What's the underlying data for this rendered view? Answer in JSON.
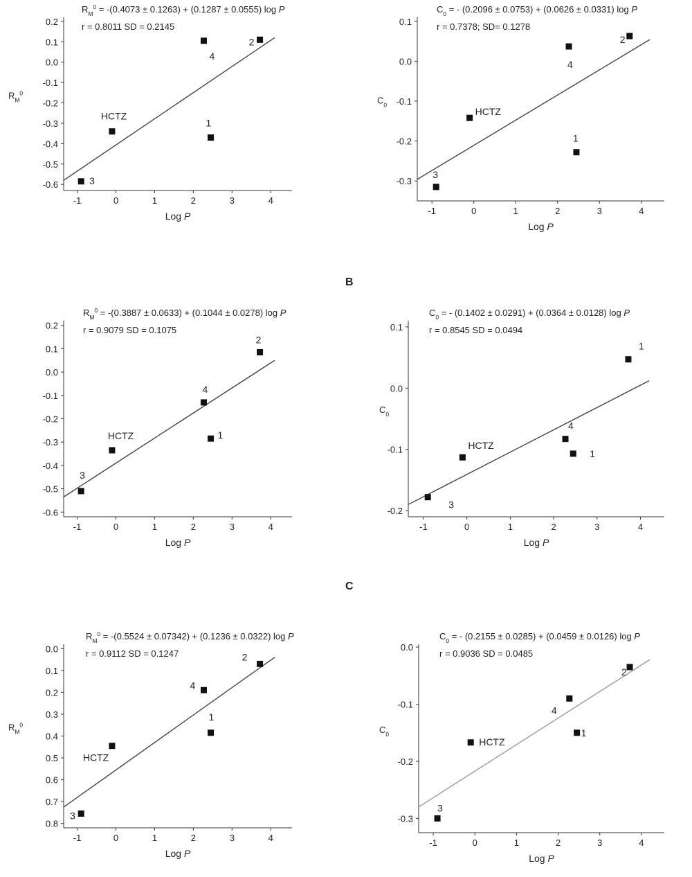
{
  "section_labels": {
    "b": "B",
    "c": "C"
  },
  "chart_data": [
    {
      "type": "scatter",
      "equation": "R_M^0 = -(0.4073 ± 0.1263) + (0.1287 ± 0.0555) log P",
      "stats": [
        "r = 0.8011",
        "SD = 0.2145"
      ],
      "xlabel": "Log P",
      "ylabel": "R_M^0",
      "xlim": [
        -1.35,
        4.55
      ],
      "ylim": [
        -0.63,
        0.22
      ],
      "yticks": [
        0.2,
        0.1,
        0.0,
        -0.1,
        -0.2,
        -0.3,
        -0.4,
        -0.5,
        -0.6
      ],
      "xticks": [
        -1,
        0,
        1,
        2,
        3,
        4
      ],
      "points": [
        {
          "label": "HCTZ",
          "x": -0.1,
          "y": -0.34
        },
        {
          "label": "1",
          "x": 2.45,
          "y": -0.37
        },
        {
          "label": "2",
          "x": 3.72,
          "y": 0.11
        },
        {
          "label": "3",
          "x": -0.9,
          "y": -0.585
        },
        {
          "label": "4",
          "x": 2.27,
          "y": 0.105
        }
      ],
      "fit": {
        "x": [
          -1.35,
          4.1
        ],
        "y": [
          -0.58,
          0.12
        ]
      },
      "fit_color": "#444444",
      "grid": false
    },
    {
      "type": "scatter",
      "equation": "C_0 = - (0.2096 ± 0.0753) + (0.0626 ± 0.0331) log P",
      "stats": [
        "r = 0.7378; SD= 0.1278"
      ],
      "xlabel": "Log P",
      "ylabel": "C_0",
      "xlim": [
        -1.35,
        4.55
      ],
      "ylim": [
        -0.35,
        0.11
      ],
      "yticks": [
        0.1,
        0.0,
        -0.1,
        -0.2,
        -0.3
      ],
      "xticks": [
        -1,
        0,
        1,
        2,
        3,
        4
      ],
      "points": [
        {
          "label": "HCTZ",
          "x": -0.1,
          "y": -0.142
        },
        {
          "label": "1",
          "x": 2.45,
          "y": -0.228
        },
        {
          "label": "2",
          "x": 3.72,
          "y": 0.063
        },
        {
          "label": "3",
          "x": -0.9,
          "y": -0.315
        },
        {
          "label": "4",
          "x": 2.27,
          "y": 0.037
        }
      ],
      "fit": {
        "x": [
          -1.35,
          4.2
        ],
        "y": [
          -0.296,
          0.054
        ]
      },
      "fit_color": "#444444",
      "grid": false
    },
    {
      "type": "scatter",
      "equation": "R_M^0 = -(0.3887 ± 0.0633) + (0.1044 ± 0.0278) log P",
      "stats": [
        "r = 0.9079",
        "SD = 0.1075"
      ],
      "xlabel": "Log P",
      "ylabel": "",
      "xlim": [
        -1.35,
        4.55
      ],
      "ylim": [
        -0.62,
        0.22
      ],
      "yticks": [
        0.2,
        0.1,
        0.0,
        -0.1,
        -0.2,
        -0.3,
        -0.4,
        -0.5,
        -0.6
      ],
      "xticks": [
        -1,
        0,
        1,
        2,
        3,
        4
      ],
      "points": [
        {
          "label": "HCTZ",
          "x": -0.1,
          "y": -0.335
        },
        {
          "label": "1",
          "x": 2.45,
          "y": -0.285
        },
        {
          "label": "2",
          "x": 3.72,
          "y": 0.085
        },
        {
          "label": "3",
          "x": -0.9,
          "y": -0.51
        },
        {
          "label": "4",
          "x": 2.27,
          "y": -0.13
        }
      ],
      "fit": {
        "x": [
          -1.35,
          4.1
        ],
        "y": [
          -0.535,
          0.05
        ]
      },
      "fit_color": "#444444",
      "grid": false
    },
    {
      "type": "scatter",
      "equation": "C_0 = - (0.1402 ± 0.0291) + (0.0364 ± 0.0128) log P",
      "stats": [
        "r = 0.8545",
        "SD = 0.0494"
      ],
      "xlabel": "Log P",
      "ylabel": "C_0",
      "xlim": [
        -1.35,
        4.55
      ],
      "ylim": [
        -0.21,
        0.11
      ],
      "yticks": [
        0.1,
        0.0,
        -0.1,
        -0.2
      ],
      "xticks": [
        -1,
        0,
        1,
        2,
        3,
        4
      ],
      "points": [
        {
          "label": "HCTZ",
          "x": -0.1,
          "y": -0.113
        },
        {
          "label": "1",
          "x": 2.45,
          "y": -0.107
        },
        {
          "label": "1",
          "x": 3.72,
          "y": 0.047
        },
        {
          "label": "3",
          "x": -0.9,
          "y": -0.178
        },
        {
          "label": "4",
          "x": 2.27,
          "y": -0.083
        }
      ],
      "fit": {
        "x": [
          -1.35,
          4.2
        ],
        "y": [
          -0.19,
          0.012
        ]
      },
      "fit_color": "#444444",
      "grid": false
    },
    {
      "type": "scatter",
      "equation": "R_M^0 = -(0.5524 ± 0.07342) + (0.1236 ± 0.0322) log P",
      "stats": [
        "r = 0.9112",
        "SD = 0.1247"
      ],
      "xlabel": "Log P",
      "ylabel": "R_M^0",
      "xlim": [
        -1.35,
        4.55
      ],
      "ylim": [
        0.82,
        -0.02
      ],
      "yticks": [
        0.0,
        0.1,
        0.2,
        0.3,
        0.4,
        0.5,
        0.6,
        0.7,
        0.8
      ],
      "xticks": [
        -1,
        0,
        1,
        2,
        3,
        4
      ],
      "points": [
        {
          "label": "HCTZ",
          "x": -0.1,
          "y": 0.445
        },
        {
          "label": "1",
          "x": 2.45,
          "y": 0.385
        },
        {
          "label": "2",
          "x": 3.72,
          "y": 0.07
        },
        {
          "label": "3",
          "x": -0.9,
          "y": 0.755
        },
        {
          "label": "4",
          "x": 2.27,
          "y": 0.19
        }
      ],
      "fit": {
        "x": [
          -1.35,
          4.1
        ],
        "y": [
          0.725,
          0.04
        ]
      },
      "fit_color": "#444444",
      "grid": false
    },
    {
      "type": "scatter",
      "equation": "C_0 = - (0.2155 ± 0.0285) + (0.0459 ± 0.0126) log P",
      "stats": [
        "r = 0.9036",
        "SD = 0.0485"
      ],
      "xlabel": "Log P",
      "ylabel": "C_0",
      "xlim": [
        -1.35,
        4.55
      ],
      "ylim": [
        -0.325,
        0.005
      ],
      "yticks": [
        0.0,
        -0.1,
        -0.2,
        -0.3
      ],
      "xticks": [
        -1,
        0,
        1,
        2,
        3,
        4
      ],
      "points": [
        {
          "label": "HCTZ",
          "x": -0.1,
          "y": -0.167
        },
        {
          "label": "1",
          "x": 2.45,
          "y": -0.15
        },
        {
          "label": "2",
          "x": 3.72,
          "y": -0.035
        },
        {
          "label": "3",
          "x": -0.9,
          "y": -0.3
        },
        {
          "label": "4",
          "x": 2.27,
          "y": -0.09
        }
      ],
      "fit": {
        "x": [
          -1.35,
          4.2
        ],
        "y": [
          -0.28,
          -0.022
        ]
      },
      "fit_color": "#9a9a9a",
      "grid": false
    }
  ]
}
